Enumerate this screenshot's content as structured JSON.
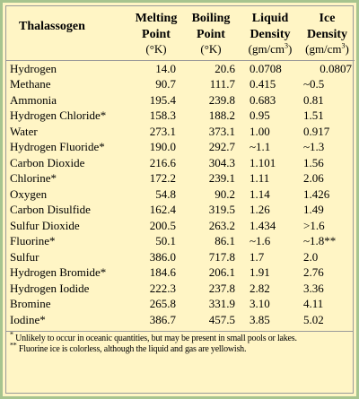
{
  "headers": {
    "name": "Thalassogen",
    "melting_1": "Melting",
    "melting_2": "Point",
    "melting_unit": "(°K)",
    "boiling_1": "Boiling",
    "boiling_2": "Point",
    "boiling_unit": "(°K)",
    "liquid_1": "Liquid",
    "liquid_2": "Density",
    "liquid_unit": "(gm/cm",
    "ice_1": "Ice",
    "ice_2": "Density",
    "ice_unit": "(gm/cm",
    "unit_exp": "3",
    "unit_close": ")"
  },
  "rows": [
    {
      "name": "Hydrogen",
      "melting": "14.0",
      "boiling": "20.6",
      "liquid": "0.0708",
      "ice": "0.0807",
      "ice_align": "right"
    },
    {
      "name": "Methane",
      "melting": "90.7",
      "boiling": "111.7",
      "liquid": "0.415",
      "ice": "~0.5",
      "ice_align": "left"
    },
    {
      "name": "Ammonia",
      "melting": "195.4",
      "boiling": "239.8",
      "liquid": "0.683",
      "ice": "0.81",
      "ice_align": "left"
    },
    {
      "name": "Hydrogen Chloride*",
      "melting": "158.3",
      "boiling": "188.2",
      "liquid": "0.95",
      "ice": "1.51",
      "ice_align": "left"
    },
    {
      "name": "Water",
      "melting": "273.1",
      "boiling": "373.1",
      "liquid": "1.00",
      "ice": "0.917",
      "ice_align": "left"
    },
    {
      "name": "Hydrogen Fluoride*",
      "melting": "190.0",
      "boiling": "292.7",
      "liquid": "~1.1",
      "ice": "~1.3",
      "ice_align": "left"
    },
    {
      "name": "Carbon Dioxide",
      "melting": "216.6",
      "boiling": "304.3",
      "liquid": "1.101",
      "ice": "1.56",
      "ice_align": "left"
    },
    {
      "name": "Chlorine*",
      "melting": "172.2",
      "boiling": "239.1",
      "liquid": "1.11",
      "ice": "2.06",
      "ice_align": "left"
    },
    {
      "name": "Oxygen",
      "melting": "54.8",
      "boiling": "90.2",
      "liquid": "1.14",
      "ice": "1.426",
      "ice_align": "left"
    },
    {
      "name": "Carbon Disulfide",
      "melting": "162.4",
      "boiling": "319.5",
      "liquid": "1.26",
      "ice": "1.49",
      "ice_align": "left"
    },
    {
      "name": "Sulfur Dioxide",
      "melting": "200.5",
      "boiling": "263.2",
      "liquid": "1.434",
      "ice": ">1.6",
      "ice_align": "left"
    },
    {
      "name": "Fluorine*",
      "melting": "50.1",
      "boiling": "86.1",
      "liquid": "~1.6",
      "ice": "~1.8**",
      "ice_align": "left"
    },
    {
      "name": "Sulfur",
      "melting": "386.0",
      "boiling": "717.8",
      "liquid": "1.7",
      "ice": "2.0",
      "ice_align": "left"
    },
    {
      "name": "Hydrogen Bromide*",
      "melting": "184.6",
      "boiling": "206.1",
      "liquid": "1.91",
      "ice": "2.76",
      "ice_align": "left"
    },
    {
      "name": "Hydrogen Iodide",
      "melting": "222.3",
      "boiling": "237.8",
      "liquid": "2.82",
      "ice": "3.36",
      "ice_align": "left"
    },
    {
      "name": "Bromine",
      "melting": "265.8",
      "boiling": "331.9",
      "liquid": "3.10",
      "ice": "4.11",
      "ice_align": "left"
    },
    {
      "name": "Iodine*",
      "melting": "386.7",
      "boiling": "457.5",
      "liquid": "3.85",
      "ice": "5.02",
      "ice_align": "left"
    }
  ],
  "footnotes": {
    "fn1_mark": "*",
    "fn1": " Unlikely to occur in oceanic quantities, but may be present in small pools or lakes.",
    "fn2_mark": "**",
    "fn2": " Fluorine ice is colorless, although the liquid and gas are yellowish."
  }
}
